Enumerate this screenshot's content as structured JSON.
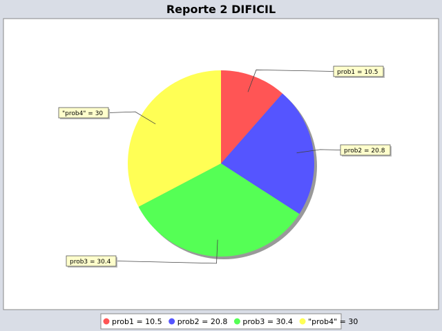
{
  "chart_data": {
    "type": "pie",
    "title": "Reporte 2 DIFICIL",
    "categories": [
      "prob1",
      "prob2",
      "prob3",
      "\"prob4\""
    ],
    "values": [
      10.5,
      20.8,
      30.4,
      30
    ],
    "slice_labels": [
      "prob1 = 10.5",
      "prob2 = 20.8",
      "prob3 = 30.4",
      "\"prob4\" = 30"
    ],
    "legend_labels": [
      "prob1 = 10.5",
      "prob2 = 20.8",
      "prob3 = 30.4",
      "\"prob4\" = 30"
    ],
    "colors": [
      "#ff5555",
      "#5555ff",
      "#55ff55",
      "#ffff55"
    ],
    "legend_position": "bottom"
  },
  "style": {
    "background": "#d9dde6",
    "plot_background": "#ffffff",
    "label_box_fill": "#ffffcc",
    "shadow": "#999999"
  }
}
